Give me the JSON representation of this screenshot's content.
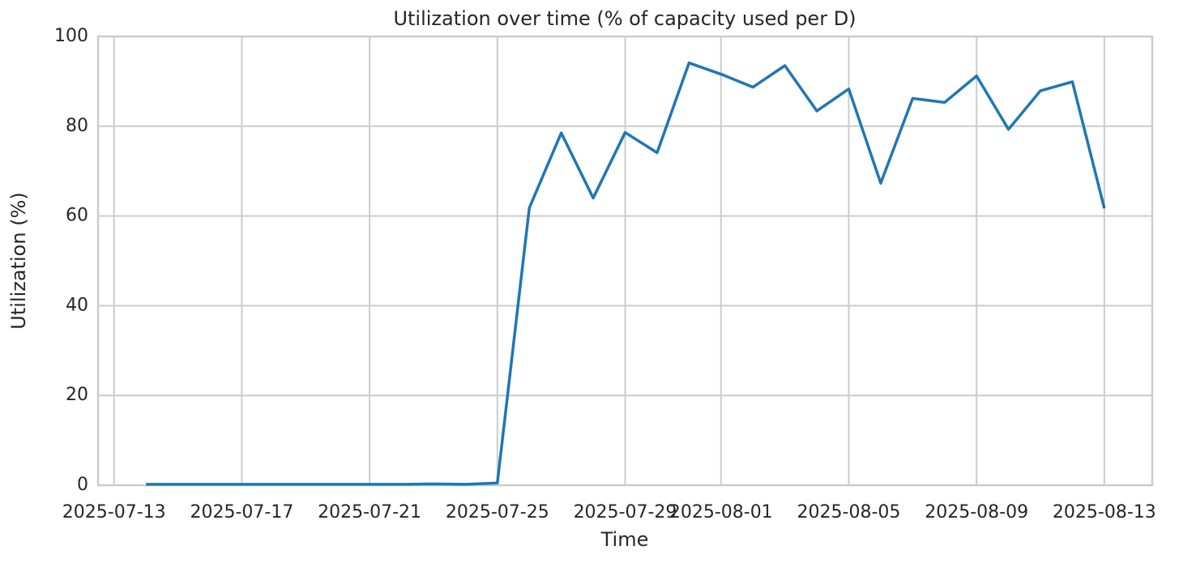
{
  "chart_data": {
    "type": "line",
    "title": "Utilization over time (% of capacity used per D)",
    "x_label": "Time",
    "y_label": "Utilization (%)",
    "x": [
      "2025-07-14",
      "2025-07-15",
      "2025-07-16",
      "2025-07-17",
      "2025-07-18",
      "2025-07-19",
      "2025-07-20",
      "2025-07-21",
      "2025-07-22",
      "2025-07-23",
      "2025-07-24",
      "2025-07-25",
      "2025-07-26",
      "2025-07-27",
      "2025-07-28",
      "2025-07-29",
      "2025-07-30",
      "2025-07-31",
      "2025-08-01",
      "2025-08-02",
      "2025-08-03",
      "2025-08-04",
      "2025-08-05",
      "2025-08-06",
      "2025-08-07",
      "2025-08-08",
      "2025-08-09",
      "2025-08-10",
      "2025-08-11",
      "2025-08-12",
      "2025-08-13"
    ],
    "values": [
      0.2,
      0.2,
      0.2,
      0.2,
      0.2,
      0.2,
      0.2,
      0.2,
      0.2,
      0.3,
      0.2,
      0.5,
      61.8,
      78.5,
      64.0,
      78.6,
      74.1,
      94.1,
      91.6,
      88.7,
      93.5,
      83.4,
      88.3,
      67.3,
      86.2,
      85.3,
      91.2,
      79.3,
      87.9,
      89.9,
      61.7
    ],
    "color": "#1f77b4",
    "xlim": [
      "2025-07-12T12:00",
      "2025-08-14T12:00"
    ],
    "xticks": [
      "2025-07-13",
      "2025-07-17",
      "2025-07-21",
      "2025-07-25",
      "2025-07-29",
      "2025-08-01",
      "2025-08-05",
      "2025-08-09",
      "2025-08-13"
    ],
    "ylim": [
      0,
      100
    ],
    "yticks": [
      0,
      20,
      40,
      60,
      80,
      100
    ],
    "grid": true
  }
}
